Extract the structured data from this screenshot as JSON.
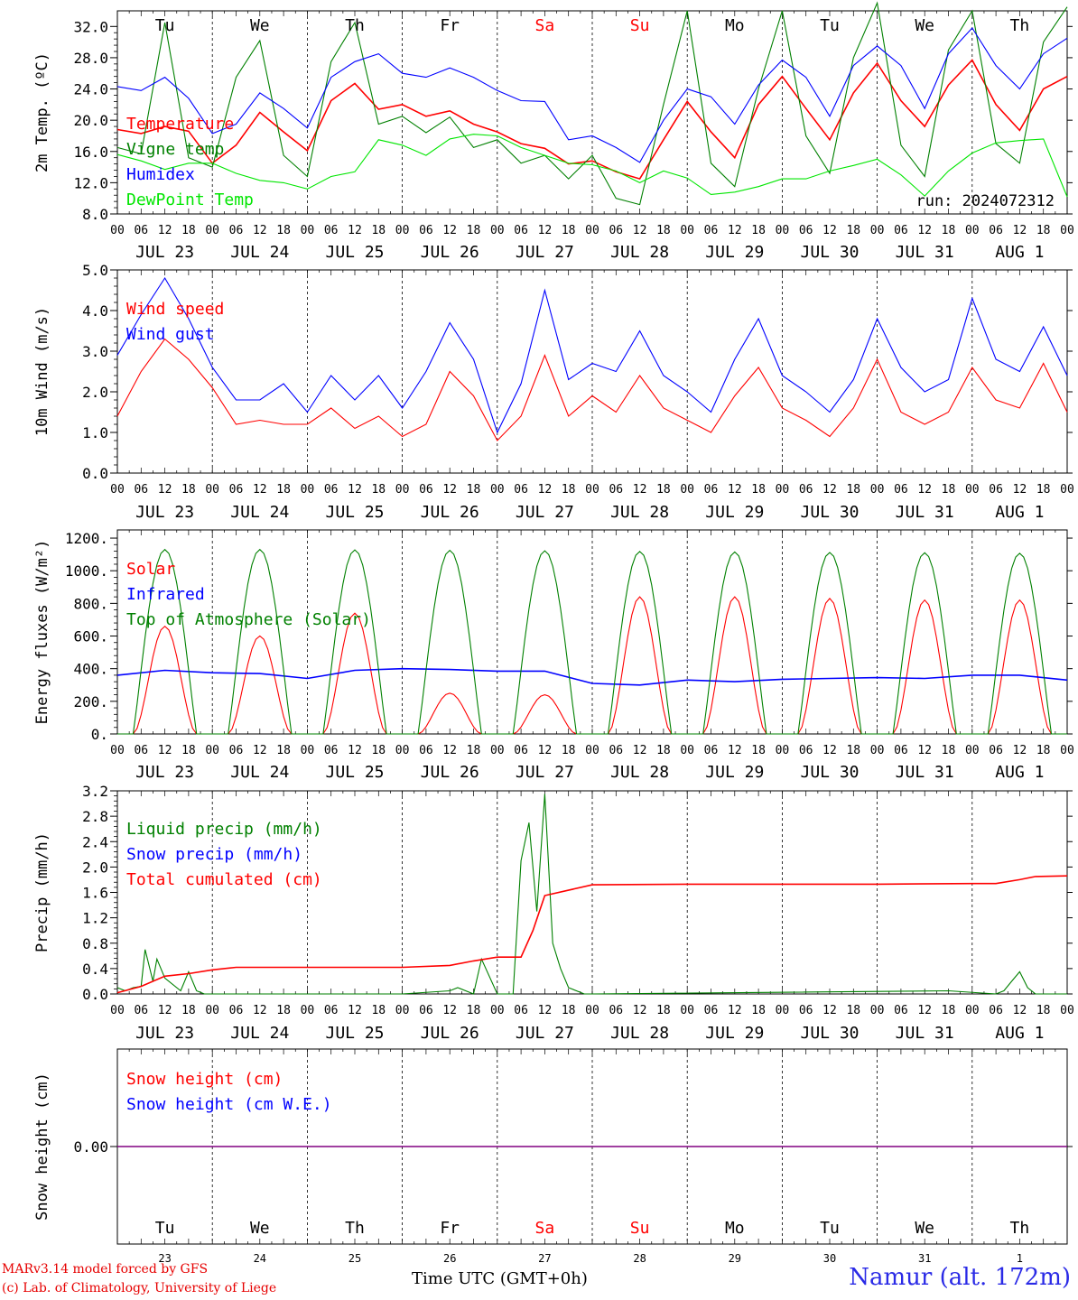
{
  "colors": {
    "red": "#ff0000",
    "green": "#008000",
    "blue": "#0000ff",
    "lightgreen": "#00e600",
    "purple": "#800080"
  },
  "days": [
    {
      "weekday": "Tu",
      "weekday_color": "#000000",
      "date": "JUL 23",
      "daynum": "23"
    },
    {
      "weekday": "We",
      "weekday_color": "#000000",
      "date": "JUL 24",
      "daynum": "24"
    },
    {
      "weekday": "Th",
      "weekday_color": "#000000",
      "date": "JUL 25",
      "daynum": "25"
    },
    {
      "weekday": "Fr",
      "weekday_color": "#000000",
      "date": "JUL 26",
      "daynum": "26"
    },
    {
      "weekday": "Sa",
      "weekday_color": "#ff0000",
      "date": "JUL 27",
      "daynum": "27"
    },
    {
      "weekday": "Su",
      "weekday_color": "#ff0000",
      "date": "JUL 28",
      "daynum": "28"
    },
    {
      "weekday": "Mo",
      "weekday_color": "#000000",
      "date": "JUL 29",
      "daynum": "29"
    },
    {
      "weekday": "Tu",
      "weekday_color": "#000000",
      "date": "JUL 30",
      "daynum": "30"
    },
    {
      "weekday": "We",
      "weekday_color": "#000000",
      "date": "JUL 31",
      "daynum": "31"
    },
    {
      "weekday": "Th",
      "weekday_color": "#000000",
      "date": "AUG  1",
      "daynum": "1"
    }
  ],
  "hour_labels": [
    "00",
    "06",
    "12",
    "18"
  ],
  "final_hour_label": "00",
  "footer": {
    "credit_line1": "MARv3.14 model forced by GFS",
    "credit_line2": "(c) Lab. of Climatology, University of Liege",
    "x_title": "Time UTC (GMT+0h)",
    "station": "Namur (alt. 172m)"
  },
  "chart_data": [
    {
      "type": "line",
      "panel": "temperature",
      "ylabel": "2m Temp. (ºC)",
      "ylim": [
        8,
        34
      ],
      "yticks": [
        "8.0",
        "12.0",
        "16.0",
        "20.0",
        "24.0",
        "28.0",
        "32.0"
      ],
      "ytick_values": [
        8,
        12,
        16,
        20,
        24,
        28,
        32
      ],
      "run_label": "run: 2024072312",
      "x_hours": [
        0,
        6,
        12,
        18,
        24,
        30,
        36,
        42,
        48,
        54,
        60,
        66,
        72,
        78,
        84,
        90,
        96,
        102,
        108,
        114,
        120,
        126,
        132,
        138,
        144,
        150,
        156,
        162,
        168,
        174,
        180,
        186,
        192,
        198,
        204,
        210,
        216,
        222,
        228,
        234,
        240
      ],
      "series": [
        {
          "name": "Temperature",
          "color": "#ff0000",
          "values": [
            18.8,
            18.3,
            19.2,
            18.6,
            14.5,
            16.8,
            21,
            18.5,
            16.1,
            22.5,
            24.7,
            21.4,
            22,
            20.5,
            21.2,
            19.5,
            18.5,
            17,
            16.4,
            14.4,
            14.8,
            13.4,
            12.5,
            17.5,
            22.4,
            18.5,
            15.2,
            22,
            25.6,
            21.5,
            17.5,
            23.5,
            27.3,
            22.5,
            19.2,
            24.5,
            27.7,
            22,
            18.7,
            24,
            25.6
          ]
        },
        {
          "name": "Vigne temp",
          "color": "#008000",
          "values": [
            16.5,
            15.7,
            32.5,
            15.2,
            14,
            25.5,
            30.2,
            15.5,
            12.8,
            27.5,
            32.5,
            19.5,
            20.5,
            18.4,
            20.4,
            16.5,
            17.5,
            14.5,
            15.5,
            12.5,
            15.5,
            10,
            9.2,
            22,
            34,
            14.5,
            11.5,
            24,
            34,
            18,
            13.2,
            28,
            35,
            16.8,
            12.8,
            29,
            34,
            17,
            14.5,
            30,
            34.5
          ]
        },
        {
          "name": "Humidex",
          "color": "#0000ff",
          "values": [
            24.3,
            23.8,
            25.5,
            22.8,
            18.3,
            19.5,
            23.5,
            21.5,
            19,
            25.5,
            27.5,
            28.5,
            26,
            25.5,
            26.7,
            25.5,
            23.8,
            22.5,
            22.4,
            17.5,
            18,
            16.5,
            14.6,
            20,
            24,
            23,
            19.5,
            24.5,
            27.7,
            25.5,
            20.5,
            27,
            29.5,
            27,
            21.5,
            28.5,
            31.8,
            27,
            24,
            28.5,
            30.5
          ]
        },
        {
          "name": "DewPoint Temp",
          "color": "#00e600",
          "values": [
            15.6,
            14.8,
            13.7,
            14.5,
            14.5,
            13.2,
            12.3,
            12,
            11.2,
            12.8,
            13.4,
            17.5,
            16.8,
            15.5,
            17.6,
            18.2,
            18,
            16.5,
            15.5,
            14.5,
            14.3,
            13.5,
            12,
            13.5,
            12.6,
            10.5,
            10.8,
            11.5,
            12.5,
            12.5,
            13.5,
            14.2,
            15,
            13,
            10.3,
            13.5,
            15.8,
            17.1,
            17.4,
            17.6,
            10.2
          ]
        }
      ]
    },
    {
      "type": "line",
      "panel": "wind",
      "ylabel": "10m Wind (m/s)",
      "ylim": [
        0,
        5
      ],
      "yticks": [
        "0.0",
        "1.0",
        "2.0",
        "3.0",
        "4.0",
        "5.0"
      ],
      "ytick_values": [
        0,
        1,
        2,
        3,
        4,
        5
      ],
      "x_hours": [
        0,
        6,
        12,
        18,
        24,
        30,
        36,
        42,
        48,
        54,
        60,
        66,
        72,
        78,
        84,
        90,
        96,
        102,
        108,
        114,
        120,
        126,
        132,
        138,
        144,
        150,
        156,
        162,
        168,
        174,
        180,
        186,
        192,
        198,
        204,
        210,
        216,
        222,
        228,
        234,
        240
      ],
      "series": [
        {
          "name": "Wind speed",
          "color": "#ff0000",
          "values": [
            1.4,
            2.5,
            3.3,
            2.8,
            2.1,
            1.2,
            1.3,
            1.2,
            1.2,
            1.6,
            1.1,
            1.4,
            0.9,
            1.2,
            2.5,
            1.9,
            0.8,
            1.4,
            2.9,
            1.4,
            1.9,
            1.5,
            2.4,
            1.6,
            1.3,
            1,
            1.9,
            2.6,
            1.6,
            1.3,
            0.9,
            1.6,
            2.8,
            1.5,
            1.2,
            1.5,
            2.6,
            1.8,
            1.6,
            2.7,
            1.5
          ]
        },
        {
          "name": "Wind gust",
          "color": "#0000ff",
          "values": [
            2.9,
            3.9,
            4.8,
            3.8,
            2.6,
            1.8,
            1.8,
            2.2,
            1.5,
            2.4,
            1.8,
            2.4,
            1.6,
            2.5,
            3.7,
            2.8,
            1,
            2.2,
            4.5,
            2.3,
            2.7,
            2.5,
            3.5,
            2.4,
            2,
            1.5,
            2.8,
            3.8,
            2.4,
            2,
            1.5,
            2.3,
            3.8,
            2.6,
            2,
            2.3,
            4.3,
            2.8,
            2.5,
            3.6,
            2.4
          ]
        }
      ]
    },
    {
      "type": "line",
      "panel": "energy",
      "ylabel": "Energy fluxes (W/m²)",
      "ylim": [
        0,
        1250
      ],
      "yticks": [
        "0.",
        "200.",
        "400.",
        "600.",
        "800.",
        "1000.",
        "1200."
      ],
      "ytick_values": [
        0,
        200,
        400,
        600,
        800,
        1000,
        1200
      ],
      "daily_peak_hour": 12,
      "daylight_start_hour": 4,
      "daylight_end_hour": 20,
      "series": [
        {
          "name": "Solar",
          "color": "#ff0000",
          "daily_peaks": [
            660,
            600,
            740,
            250,
            240,
            840,
            840,
            830,
            820,
            820
          ]
        },
        {
          "name": "Infrared",
          "color": "#0000ff",
          "x_hours": [
            0,
            12,
            24,
            36,
            48,
            60,
            72,
            84,
            96,
            108,
            120,
            132,
            144,
            156,
            168,
            180,
            192,
            204,
            216,
            228,
            240
          ],
          "values": [
            360,
            390,
            375,
            370,
            340,
            390,
            400,
            395,
            385,
            385,
            310,
            300,
            330,
            320,
            335,
            340,
            345,
            340,
            360,
            360,
            330
          ]
        },
        {
          "name": "Top of Atmosphere (Solar)",
          "color": "#008000",
          "daily_peaks": [
            1130,
            1130,
            1128,
            1125,
            1122,
            1118,
            1115,
            1112,
            1110,
            1107
          ]
        }
      ]
    },
    {
      "type": "line",
      "panel": "precip",
      "ylabel": "Precip (mm/h)",
      "ylim": [
        0,
        3.2
      ],
      "yticks": [
        "0.0",
        "0.4",
        "0.8",
        "1.2",
        "1.6",
        "2.0",
        "2.4",
        "2.8",
        "3.2"
      ],
      "ytick_values": [
        0,
        0.4,
        0.8,
        1.2,
        1.6,
        2,
        2.4,
        2.8,
        3.2
      ],
      "series": [
        {
          "name": "Liquid precip (mm/h)",
          "color": "#008000",
          "x_hours": [
            0,
            2,
            4,
            6,
            7,
            9,
            10,
            12,
            16,
            18,
            20,
            22,
            24,
            48,
            60,
            72,
            84,
            86,
            90,
            92,
            96,
            100,
            102,
            104,
            106,
            108,
            110,
            112,
            114,
            118,
            120,
            210,
            222,
            224,
            226,
            228,
            230,
            232,
            240
          ],
          "values": [
            0.1,
            0.05,
            0.1,
            0.12,
            0.7,
            0.2,
            0.55,
            0.25,
            0.05,
            0.35,
            0.05,
            0,
            0,
            0,
            0,
            0,
            0.05,
            0.1,
            0,
            0.55,
            0,
            0,
            2.1,
            2.7,
            1.3,
            3.15,
            0.8,
            0.4,
            0.1,
            0,
            0,
            0.05,
            0,
            0.05,
            0.2,
            0.35,
            0.1,
            0,
            0
          ]
        },
        {
          "name": "Snow precip (mm/h)",
          "color": "#0000ff",
          "values": []
        },
        {
          "name": "Total cumulated (cm)",
          "color": "#ff0000",
          "x_hours": [
            0,
            6,
            12,
            18,
            24,
            30,
            48,
            72,
            84,
            90,
            96,
            102,
            105,
            108,
            120,
            144,
            168,
            192,
            216,
            222,
            228,
            232,
            240
          ],
          "values": [
            0.02,
            0.12,
            0.28,
            0.32,
            0.38,
            0.42,
            0.42,
            0.42,
            0.45,
            0.52,
            0.58,
            0.58,
            1.0,
            1.55,
            1.72,
            1.73,
            1.73,
            1.73,
            1.74,
            1.74,
            1.8,
            1.85,
            1.86
          ]
        }
      ]
    },
    {
      "type": "line",
      "panel": "snow",
      "ylabel": "Snow height (cm)",
      "ylim": [
        -1,
        1
      ],
      "yticks": [
        "0.00"
      ],
      "ytick_values": [
        0
      ],
      "series": [
        {
          "name": "Snow height (cm)",
          "color": "#ff0000",
          "values": [
            0,
            0
          ]
        },
        {
          "name": "Snow height (cm W.E.)",
          "color": "#0000ff",
          "values": [
            0,
            0
          ]
        }
      ]
    }
  ]
}
